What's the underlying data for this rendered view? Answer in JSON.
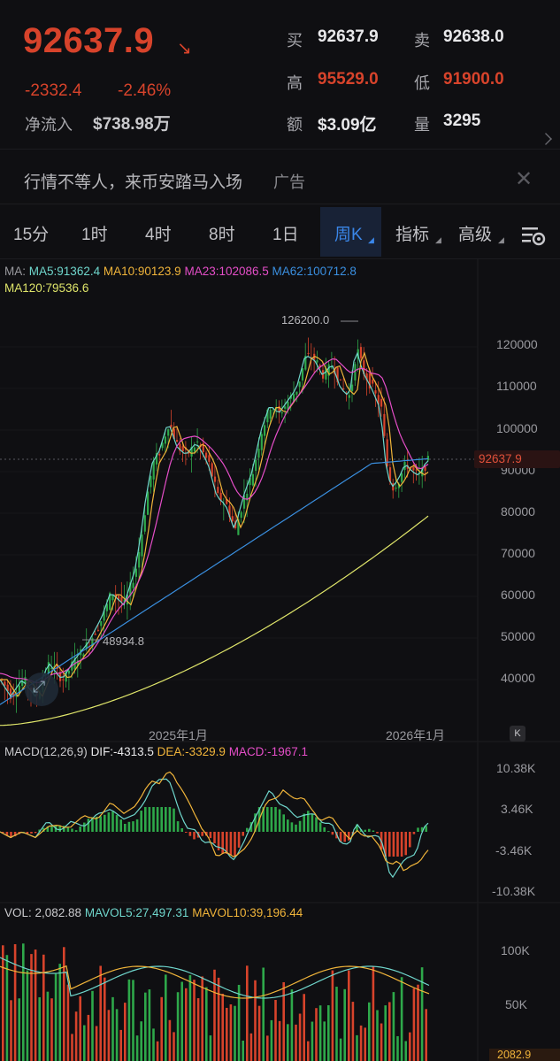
{
  "ticker": {
    "last": "92637.9",
    "change": "-2332.4",
    "change_pct": "-2.46%",
    "net_inflow_label": "净流入",
    "net_inflow_value": "$738.98万",
    "direction_icon": "down-right-arrow-icon"
  },
  "quote": {
    "bid_label": "买",
    "bid": "92637.9",
    "ask_label": "卖",
    "ask": "92638.0",
    "high_label": "高",
    "high": "95529.0",
    "low_label": "低",
    "low": "91900.0",
    "turnover_label": "额",
    "turnover": "$3.09亿",
    "volume_label": "量",
    "volume": "3295"
  },
  "ad": {
    "text": "行情不等人，来币安踏马入场",
    "tag": "广告"
  },
  "tabs": [
    {
      "label": "15分"
    },
    {
      "label": "1时"
    },
    {
      "label": "4时"
    },
    {
      "label": "8时"
    },
    {
      "label": "1日"
    },
    {
      "label": "周K",
      "selected": true
    },
    {
      "label": "指标"
    },
    {
      "label": "高级"
    }
  ],
  "ma_legend": {
    "prefix": "MA:",
    "ma5": "MA5:91362.4",
    "ma10": "MA10:90123.9",
    "ma23": "MA23:102086.5",
    "ma62": "MA62:100712.8",
    "ma120": "MA120:79536.6"
  },
  "price_axis": [
    "120000",
    "110000",
    "100000",
    "90000",
    "80000",
    "70000",
    "60000",
    "50000",
    "40000"
  ],
  "current_price_tag": "92637.9",
  "high_marker": "126200.0",
  "low_marker": "48934.8",
  "time_axis": [
    "2025年1月",
    "2026年1月"
  ],
  "macd_legend": {
    "title": "MACD(12,26,9)",
    "dif": "DIF:-4313.5",
    "dea": "DEA:-3329.9",
    "macd": "MACD:-1967.1"
  },
  "macd_axis": [
    "10.38K",
    "3.46K",
    "-3.46K",
    "-10.38K"
  ],
  "vol_legend": {
    "vol": "VOL: 2,082.88",
    "mavol5": "MAVOL5:27,497.31",
    "mavol10": "MAVOL10:39,196.44"
  },
  "vol_axis": [
    "100K",
    "50K"
  ],
  "vol_tag": "2082.9",
  "colors": {
    "up": "#2ea84a",
    "down": "#d7432b",
    "ma5": "#6fd6cc",
    "ma10": "#f0b43a",
    "ma23": "#e54ec8",
    "ma62": "#3a8fe0",
    "ma120": "#dfe56a",
    "accent": "#3a7bd5"
  }
}
